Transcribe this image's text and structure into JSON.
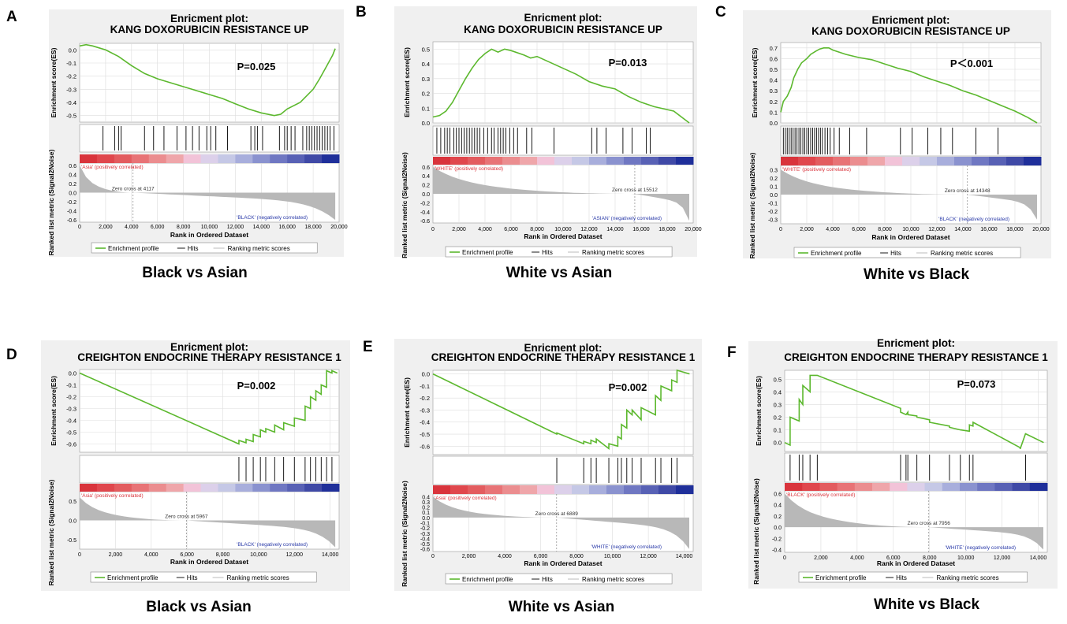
{
  "legend": {
    "profile": "Enrichment profile",
    "hits": "Hits",
    "ranking": "Ranking metric scores"
  },
  "common": {
    "xlabel": "Rank in Ordered Dataset",
    "ylabel_es": "Enrichment score(ES)",
    "ylabel_metric": "Ranked list metric (Signal2Noise)",
    "title_prefix": "Enricment plot:"
  },
  "colors": {
    "profile": "#5cb82e",
    "hits": "#000000",
    "metric": "#b8b8b8",
    "panel_bg": "#f0f0f0",
    "pos": "#d9343c",
    "neg": "#1f2f9a"
  },
  "chart_data": [
    {
      "panel": "A",
      "type": "line",
      "title": "Enricment plot:",
      "subtitle": "KANG DOXORUBICIN RESISTANCE UP",
      "caption": "Black vs Asian",
      "pvalue": "P=0.025",
      "xlabel": "Rank in Ordered Dataset",
      "ylabel": "Enrichment score(ES)",
      "ylabel_metric": "Ranked list metric (Signal2Noise)",
      "xlim": [
        0,
        20000
      ],
      "xticks": [
        "0",
        "2,000",
        "4,000",
        "6,000",
        "8,000",
        "10,000",
        "12,000",
        "14,000",
        "16,000",
        "18,000",
        "20,000"
      ],
      "xtick_values": [
        0,
        2000,
        4000,
        6000,
        8000,
        10000,
        12000,
        14000,
        16000,
        18000,
        20000
      ],
      "es_ylim": [
        -0.55,
        0.05
      ],
      "es_ticks": [
        0.0,
        -0.1,
        -0.2,
        -0.3,
        -0.4,
        -0.5
      ],
      "es_tick_labels": [
        "0.0",
        "-0.1",
        "-0.2",
        "-0.3",
        "-0.4",
        "-0.5"
      ],
      "es_curve": {
        "x": [
          0,
          500,
          1000,
          2000,
          3000,
          4000,
          5000,
          6000,
          7000,
          8000,
          9000,
          10000,
          11000,
          12000,
          13000,
          14000,
          15000,
          15500,
          16000,
          17000,
          18000,
          18500,
          19000,
          19500,
          19700
        ],
        "y": [
          0.03,
          0.04,
          0.03,
          0.0,
          -0.05,
          -0.12,
          -0.18,
          -0.22,
          -0.25,
          -0.28,
          -0.31,
          -0.34,
          -0.37,
          -0.41,
          -0.45,
          -0.48,
          -0.5,
          -0.49,
          -0.45,
          -0.4,
          -0.3,
          -0.22,
          -0.13,
          -0.04,
          0.01
        ]
      },
      "hits": [
        1800,
        2700,
        3000,
        3200,
        5000,
        5700,
        6500,
        7500,
        8200,
        8700,
        9200,
        9800,
        10100,
        10500,
        11400,
        13200,
        13500,
        13700,
        14100,
        15400,
        15800,
        16000,
        16300,
        16600,
        17200,
        17500,
        17700,
        17900,
        18100,
        18300,
        18500,
        18700,
        18900,
        19100,
        19300,
        19600
      ],
      "pos_label": "'Asia' (positively correlated)",
      "neg_label": "'BLACK' (negatively correlated)",
      "zero_cross": "Zero cross at 4117",
      "zero_cross_x": 4117,
      "metric_ylim": [
        -0.65,
        0.65
      ],
      "metric_ticks": [
        0.6,
        0.4,
        0.2,
        0.0,
        -0.2,
        -0.4,
        -0.6
      ],
      "metric_tick_labels": [
        "0.6",
        "0.4",
        "0.2",
        "0.0",
        "-0.2",
        "-0.4",
        "-0.6"
      ],
      "metric_max": 0.6,
      "metric_min": -0.6
    },
    {
      "panel": "B",
      "type": "line",
      "title": "Enricment plot:",
      "subtitle": "KANG DOXORUBICIN RESISTANCE UP",
      "caption": "White vs Asian",
      "pvalue": "P=0.013",
      "xlabel": "Rank in Ordered Dataset",
      "ylabel": "Enrichment score(ES)",
      "ylabel_metric": "Ranked list metric (Signal2Noise)",
      "xlim": [
        0,
        20000
      ],
      "xticks": [
        "0",
        "2,000",
        "4,000",
        "6,000",
        "8,000",
        "10,000",
        "12,000",
        "14,000",
        "16,000",
        "18,000",
        "20,000"
      ],
      "xtick_values": [
        0,
        2000,
        4000,
        6000,
        8000,
        10000,
        12000,
        14000,
        16000,
        18000,
        20000
      ],
      "es_ylim": [
        0.0,
        0.55
      ],
      "es_ticks": [
        0.0,
        0.1,
        0.2,
        0.3,
        0.4,
        0.5
      ],
      "es_tick_labels": [
        "0.0",
        "0.1",
        "0.2",
        "0.3",
        "0.4",
        "0.5"
      ],
      "es_curve": {
        "x": [
          0,
          500,
          1000,
          1500,
          2000,
          2500,
          3000,
          3500,
          4000,
          4500,
          5000,
          5500,
          6000,
          7000,
          7500,
          8000,
          9000,
          10000,
          11000,
          12000,
          13000,
          14000,
          15000,
          16000,
          17000,
          18000,
          18500,
          19700
        ],
        "y": [
          0.04,
          0.05,
          0.08,
          0.14,
          0.22,
          0.3,
          0.37,
          0.43,
          0.47,
          0.5,
          0.48,
          0.5,
          0.49,
          0.46,
          0.44,
          0.45,
          0.41,
          0.37,
          0.33,
          0.28,
          0.25,
          0.23,
          0.18,
          0.14,
          0.11,
          0.09,
          0.08,
          0.0
        ]
      },
      "hits": [
        300,
        600,
        900,
        1100,
        1300,
        1600,
        1800,
        2000,
        2200,
        2400,
        2600,
        2800,
        3000,
        3200,
        3400,
        3600,
        3900,
        4200,
        4500,
        4700,
        5000,
        5200,
        5400,
        5600,
        5900,
        6200,
        6500,
        7200,
        7600,
        9300,
        12200,
        12600,
        13300,
        14600,
        15300,
        16400,
        16700
      ],
      "pos_label": "'WHITE' (positively correlated)",
      "neg_label": "'ASIAN' (negatively correlated)",
      "zero_cross": "Zero cross at 15512",
      "zero_cross_x": 15512,
      "metric_ylim": [
        -0.65,
        0.65
      ],
      "metric_ticks": [
        0.6,
        0.4,
        0.2,
        0.0,
        -0.2,
        -0.4,
        -0.6
      ],
      "metric_tick_labels": [
        "0.6",
        "0.4",
        "0.2",
        "0.0",
        "-0.2",
        "-0.4",
        "-0.6"
      ],
      "metric_max": 0.6,
      "metric_min": -0.6
    },
    {
      "panel": "C",
      "type": "line",
      "title": "Enricment plot:",
      "subtitle": "KANG DOXORUBICIN RESISTANCE UP",
      "caption": "White vs Black",
      "pvalue": "P＜0.001",
      "xlabel": "Rank in Ordered Dataset",
      "ylabel": "Enrichment score(ES)",
      "ylabel_metric": "Ranked list metric (Signal2Noise)",
      "xlim": [
        0,
        20000
      ],
      "xticks": [
        "0",
        "2,000",
        "4,000",
        "6,000",
        "8,000",
        "10,000",
        "12,000",
        "14,000",
        "16,000",
        "18,000",
        "20,000"
      ],
      "xtick_values": [
        0,
        2000,
        4000,
        6000,
        8000,
        10000,
        12000,
        14000,
        16000,
        18000,
        20000
      ],
      "es_ylim": [
        0.0,
        0.75
      ],
      "es_ticks": [
        0.0,
        0.1,
        0.2,
        0.3,
        0.4,
        0.5,
        0.6,
        0.7
      ],
      "es_tick_labels": [
        "0.0",
        "0.1",
        "0.2",
        "0.3",
        "0.4",
        "0.5",
        "0.6",
        "0.7"
      ],
      "es_curve": {
        "x": [
          0,
          200,
          500,
          800,
          1000,
          1300,
          1600,
          2000,
          2300,
          2700,
          3000,
          3300,
          3700,
          4000,
          5000,
          6000,
          7000,
          8000,
          9000,
          10000,
          11000,
          12000,
          13000,
          14000,
          15000,
          16000,
          17000,
          18000,
          19000,
          19700
        ],
        "y": [
          0.1,
          0.2,
          0.25,
          0.33,
          0.42,
          0.5,
          0.56,
          0.6,
          0.64,
          0.67,
          0.69,
          0.7,
          0.7,
          0.68,
          0.64,
          0.61,
          0.59,
          0.55,
          0.51,
          0.48,
          0.43,
          0.39,
          0.35,
          0.3,
          0.26,
          0.21,
          0.16,
          0.11,
          0.05,
          0.0
        ]
      },
      "hits": [
        200,
        350,
        500,
        650,
        800,
        950,
        1100,
        1250,
        1400,
        1550,
        1700,
        1850,
        2000,
        2150,
        2300,
        2450,
        2600,
        2750,
        2900,
        3050,
        3200,
        3400,
        3600,
        3800,
        4100,
        4500,
        5300,
        6600,
        9200,
        10100,
        11300,
        12300,
        13200,
        15000,
        16700
      ],
      "pos_label": "'WHITE' (positively correlated)",
      "neg_label": "'BLACK' (negatively correlated)",
      "zero_cross": "Zero cross at 14348",
      "zero_cross_x": 14348,
      "metric_ylim": [
        -0.35,
        0.35
      ],
      "metric_ticks": [
        0.3,
        0.2,
        0.1,
        0.0,
        -0.1,
        -0.2,
        -0.3
      ],
      "metric_tick_labels": [
        "0.3",
        "0.2",
        "0.1",
        "0.0",
        "-0.1",
        "-0.2",
        "-0.3"
      ],
      "metric_max": 0.3,
      "metric_min": -0.3
    },
    {
      "panel": "D",
      "type": "line",
      "title": "Enricment plot:",
      "subtitle": "CREIGHTON ENDOCRINE THERAPY RESISTANCE 1",
      "caption": "Black vs Asian",
      "pvalue": "P=0.002",
      "xlabel": "Rank in Ordered Dataset",
      "ylabel": "Enrichment score(ES)",
      "ylabel_metric": "Ranked list metric (Signal2Noise)",
      "xlim": [
        0,
        14500
      ],
      "xticks": [
        "0",
        "2,000",
        "4,000",
        "6,000",
        "8,000",
        "10,000",
        "12,000",
        "14,000"
      ],
      "xtick_values": [
        0,
        2000,
        4000,
        6000,
        8000,
        10000,
        12000,
        14000
      ],
      "es_ylim": [
        -0.67,
        0.03
      ],
      "es_ticks": [
        0.0,
        -0.1,
        -0.2,
        -0.3,
        -0.4,
        -0.5,
        -0.6
      ],
      "es_tick_labels": [
        "0.0",
        "-0.1",
        "-0.2",
        "-0.3",
        "-0.4",
        "-0.5",
        "-0.6"
      ],
      "es_curve": {
        "x": [
          0,
          8900,
          8901,
          9300,
          9301,
          9700,
          9701,
          10100,
          10101,
          10400,
          10401,
          10900,
          10901,
          11400,
          11401,
          12000,
          12001,
          12600,
          12601,
          12900,
          12901,
          13200,
          13201,
          13500,
          13501,
          13800,
          13801,
          14100,
          14101,
          14400
        ],
        "y": [
          0.0,
          -0.6,
          -0.57,
          -0.59,
          -0.56,
          -0.58,
          -0.52,
          -0.54,
          -0.48,
          -0.5,
          -0.47,
          -0.5,
          -0.44,
          -0.48,
          -0.42,
          -0.45,
          -0.38,
          -0.4,
          -0.28,
          -0.3,
          -0.2,
          -0.23,
          -0.15,
          -0.18,
          -0.1,
          -0.12,
          0.02,
          0.0,
          0.02,
          0.0
        ]
      },
      "hits": [
        8900,
        9300,
        9700,
        10100,
        10400,
        10900,
        11400,
        12000,
        12600,
        12900,
        13200,
        13500,
        13800,
        14100
      ],
      "pos_label": "'Asia' (positively correlated)",
      "neg_label": "'BLACK' (negatively correlated)",
      "zero_cross": "Zero cross at 5967",
      "zero_cross_x": 5967,
      "metric_ylim": [
        -0.75,
        0.75
      ],
      "metric_ticks": [
        0.5,
        0.0,
        -0.5
      ],
      "metric_tick_labels": [
        "0.5",
        "0.0",
        "-0.5"
      ],
      "metric_max": 0.6,
      "metric_min": -0.7
    },
    {
      "panel": "E",
      "type": "line",
      "title": "Enricment plot:",
      "subtitle": "CREIGHTON ENDOCRINE THERAPY RESISTANCE 1",
      "caption": "White vs Asian",
      "pvalue": "P=0.002",
      "xlabel": "Rank in Ordered Dataset",
      "ylabel": "Enrichment score(ES)",
      "ylabel_metric": "Ranked list metric (Signal2Noise)",
      "xlim": [
        0,
        14500
      ],
      "xticks": [
        "0",
        "2,000",
        "4,000",
        "6,000",
        "8,000",
        "10,000",
        "12,000",
        "14,000"
      ],
      "xtick_values": [
        0,
        2000,
        4000,
        6000,
        8000,
        10000,
        12000,
        14000
      ],
      "es_ylim": [
        -0.67,
        0.03
      ],
      "es_ticks": [
        0.0,
        -0.1,
        -0.2,
        -0.3,
        -0.4,
        -0.5,
        -0.6
      ],
      "es_tick_labels": [
        "0.0",
        "-0.1",
        "-0.2",
        "-0.3",
        "-0.4",
        "-0.5",
        "-0.6"
      ],
      "es_curve": {
        "x": [
          0,
          6900,
          6901,
          8400,
          8401,
          8800,
          8801,
          9100,
          9101,
          9800,
          9801,
          10300,
          10301,
          10500,
          10501,
          10800,
          10801,
          11100,
          11101,
          11600,
          11601,
          12400,
          12401,
          12700,
          12701,
          13300,
          13301,
          13600,
          13601,
          14300
        ],
        "y": [
          0.0,
          -0.5,
          -0.49,
          -0.58,
          -0.56,
          -0.58,
          -0.55,
          -0.57,
          -0.54,
          -0.62,
          -0.58,
          -0.6,
          -0.52,
          -0.54,
          -0.42,
          -0.45,
          -0.3,
          -0.34,
          -0.3,
          -0.38,
          -0.28,
          -0.34,
          -0.18,
          -0.22,
          -0.1,
          -0.14,
          -0.05,
          -0.07,
          0.03,
          0.0
        ]
      },
      "hits": [
        6900,
        8400,
        8800,
        9100,
        9800,
        10300,
        10500,
        10800,
        11100,
        11600,
        12400,
        12700,
        13300,
        13600
      ],
      "pos_label": "'Asia' (positively correlated)",
      "neg_label": "'WHITE' (negatively correlated)",
      "zero_cross": "Zero cross at 6889",
      "zero_cross_x": 6889,
      "metric_ylim": [
        -0.65,
        0.45
      ],
      "metric_ticks": [
        0.4,
        0.3,
        0.2,
        0.1,
        0.0,
        -0.1,
        -0.2,
        -0.3,
        -0.4,
        -0.5,
        -0.6
      ],
      "metric_tick_labels": [
        "0.4",
        "0.3",
        "0.2",
        "0.1",
        "0.0",
        "-0.1",
        "-0.2",
        "-0.3",
        "-0.4",
        "-0.5",
        "-0.6"
      ],
      "metric_max": 0.4,
      "metric_min": -0.6
    },
    {
      "panel": "F",
      "type": "line",
      "title": "Enricment plot:",
      "subtitle": "CREIGHTON ENDOCRINE THERAPY RESISTANCE 1",
      "caption": "White vs Black",
      "pvalue": "P=0.073",
      "xlabel": "Rank in Ordered Dataset",
      "ylabel": "Enrichment score(ES)",
      "ylabel_metric": "Ranked list metric (Signal2Noise)",
      "xlim": [
        0,
        14500
      ],
      "xticks": [
        "0",
        "2,000",
        "4,000",
        "6,000",
        "8,000",
        "10,000",
        "12,000",
        "14,000"
      ],
      "xtick_values": [
        0,
        2000,
        4000,
        6000,
        8000,
        10000,
        12000,
        14000
      ],
      "es_ylim": [
        -0.07,
        0.57
      ],
      "es_ticks": [
        0.5,
        0.4,
        0.3,
        0.2,
        0.1,
        0.0
      ],
      "es_tick_labels": [
        "0.5",
        "0.4",
        "0.3",
        "0.2",
        "0.1",
        "0.0"
      ],
      "es_curve": {
        "x": [
          0,
          300,
          301,
          800,
          801,
          1000,
          1001,
          1400,
          1401,
          1800,
          6400,
          6401,
          6700,
          6800,
          6801,
          7300,
          7301,
          8000,
          8001,
          9100,
          9101,
          9700,
          10200,
          10201,
          10400,
          10401,
          13000,
          13001,
          13300,
          14300
        ],
        "y": [
          0.0,
          -0.02,
          0.2,
          0.17,
          0.34,
          0.3,
          0.45,
          0.4,
          0.53,
          0.53,
          0.27,
          0.24,
          0.22,
          0.24,
          0.22,
          0.21,
          0.2,
          0.18,
          0.16,
          0.13,
          0.12,
          0.1,
          0.09,
          0.14,
          0.13,
          0.16,
          -0.04,
          -0.05,
          0.07,
          0.0
        ]
      },
      "hits": [
        300,
        800,
        1000,
        1400,
        1800,
        6400,
        6700,
        6800,
        7300,
        8000,
        9100,
        9700,
        10200,
        10400,
        13300
      ],
      "pos_label": "'BLACK' (positively correlated)",
      "neg_label": "'WHITE' (negatively correlated)",
      "zero_cross": "Zero cross at 7956",
      "zero_cross_x": 7956,
      "metric_ylim": [
        -0.45,
        0.65
      ],
      "metric_ticks": [
        0.6,
        0.4,
        0.2,
        0.0,
        -0.2,
        -0.4
      ],
      "metric_tick_labels": [
        "0.6",
        "0.4",
        "0.2",
        "0.0",
        "-0.2",
        "-0.4"
      ],
      "metric_max": 0.6,
      "metric_min": -0.4
    }
  ]
}
